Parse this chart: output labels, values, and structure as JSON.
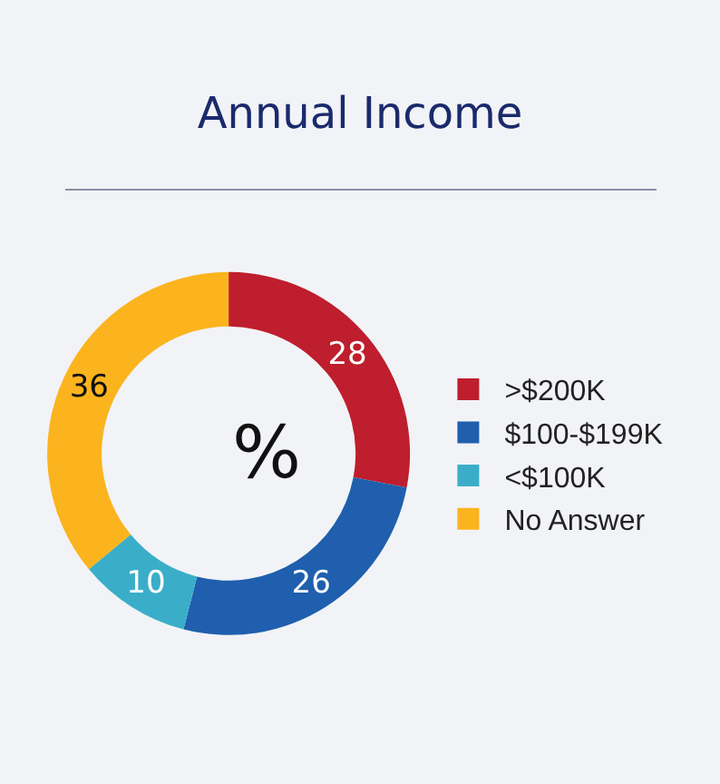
{
  "chart_data": {
    "type": "donut",
    "title": "Annual Income",
    "categories": [
      ">$200K",
      "$100-$199K",
      "<$100K",
      "No Answer"
    ],
    "values": [
      28,
      26,
      10,
      36
    ],
    "colors": [
      "#be1e2d",
      "#1f5fad",
      "#3aaec9",
      "#fbb41e"
    ],
    "data_labels": true,
    "legend": "right",
    "annotations": [
      "%"
    ]
  }
}
